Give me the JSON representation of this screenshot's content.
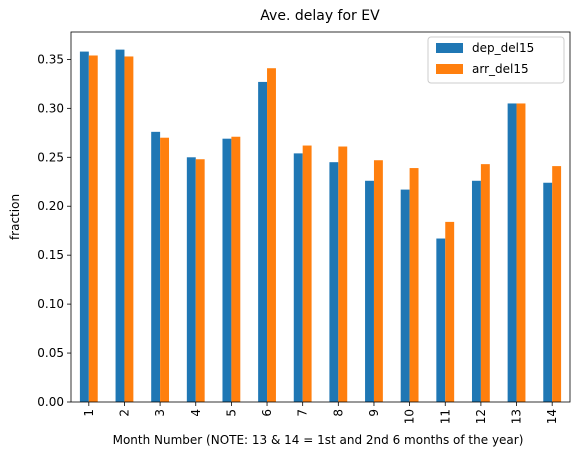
{
  "chart_data": {
    "type": "bar",
    "title": "Ave. delay for EV",
    "xlabel": "Month Number (NOTE: 13 & 14 = 1st and 2nd 6 months of the year)",
    "ylabel": "fraction",
    "ylim": [
      0,
      0.378
    ],
    "yticks": [
      "0.00",
      "0.05",
      "0.10",
      "0.15",
      "0.20",
      "0.25",
      "0.30",
      "0.35"
    ],
    "categories": [
      "1",
      "2",
      "3",
      "4",
      "5",
      "6",
      "7",
      "8",
      "9",
      "10",
      "11",
      "12",
      "13",
      "14"
    ],
    "series": [
      {
        "name": "dep_del15",
        "color": "#1f77b4",
        "values": [
          0.358,
          0.36,
          0.276,
          0.25,
          0.269,
          0.327,
          0.254,
          0.245,
          0.226,
          0.217,
          0.167,
          0.226,
          0.305,
          0.224
        ]
      },
      {
        "name": "arr_del15",
        "color": "#ff7f0e",
        "values": [
          0.354,
          0.353,
          0.27,
          0.248,
          0.271,
          0.341,
          0.262,
          0.261,
          0.247,
          0.239,
          0.184,
          0.243,
          0.305,
          0.241
        ]
      }
    ],
    "grid": false,
    "legend_position": "top-right"
  }
}
